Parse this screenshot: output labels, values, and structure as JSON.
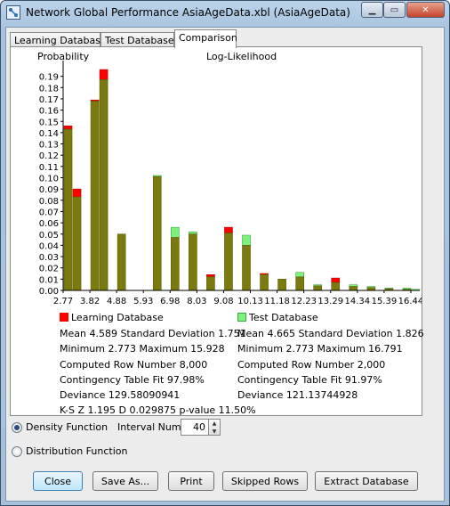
{
  "window": {
    "title": "Network Global Performance AsiaAgeData.xbl (AsiaAgeData)"
  },
  "tabs": [
    {
      "label": "Learning Database"
    },
    {
      "label": "Test Database"
    },
    {
      "label": "Comparison"
    }
  ],
  "chart_data": {
    "type": "bar",
    "title": "Log-Likelihood",
    "ylabel": "Probability",
    "ylim": [
      0,
      0.2
    ],
    "yticks": [
      "0.00",
      "0.01",
      "0.02",
      "0.03",
      "0.04",
      "0.05",
      "0.06",
      "0.07",
      "0.08",
      "0.09",
      "0.10",
      "0.11",
      "0.12",
      "0.13",
      "0.14",
      "0.15",
      "0.16",
      "0.17",
      "0.18",
      "0.19"
    ],
    "xticks": [
      "2.77",
      "3.82",
      "4.88",
      "5.93",
      "6.98",
      "8.03",
      "9.08",
      "10.13",
      "11.18",
      "12.23",
      "13.29",
      "14.34",
      "15.39",
      "16.44"
    ],
    "bins": 40,
    "series": [
      {
        "name": "Learning Database",
        "color": "#ff0000",
        "values": [
          0.146,
          0.09,
          0.0,
          0.169,
          0.196,
          0.0,
          0.05,
          0.0,
          0.0,
          0.0,
          0.101,
          0.0,
          0.047,
          0.0,
          0.05,
          0.0,
          0.014,
          0.0,
          0.056,
          0.0,
          0.04,
          0.0,
          0.015,
          0.0,
          0.01,
          0.0,
          0.012,
          0.0,
          0.004,
          0.0,
          0.011,
          0.0,
          0.0035,
          0.0,
          0.0025,
          0.0,
          0.0015,
          0.0,
          0.001,
          0.0
        ]
      },
      {
        "name": "Test Database",
        "color": "#7cf27c",
        "values": [
          0.143,
          0.083,
          0.0,
          0.168,
          0.187,
          0.0,
          0.05,
          0.0,
          0.0,
          0.0,
          0.102,
          0.0,
          0.056,
          0.0,
          0.052,
          0.0,
          0.012,
          0.0,
          0.051,
          0.0,
          0.049,
          0.0,
          0.014,
          0.0,
          0.01,
          0.0,
          0.016,
          0.0,
          0.005,
          0.0,
          0.007,
          0.0,
          0.005,
          0.0,
          0.0035,
          0.0,
          0.002,
          0.0,
          0.002,
          0.001
        ]
      }
    ]
  },
  "learning": {
    "legend": "Learning Database",
    "mean_sd": "Mean 4.589 Standard Deviation 1.751",
    "min_max": "Minimum 2.773 Maximum 15.928",
    "rows": "Computed Row Number 8,000",
    "fit": "Contingency Table Fit 97.98%",
    "deviance": "Deviance 129.58090941"
  },
  "test": {
    "legend": "Test Database",
    "mean_sd": "Mean 4.665 Standard Deviation 1.826",
    "min_max": "Minimum 2.773 Maximum 16.791",
    "rows": "Computed Row Number 2,000",
    "fit": "Contingency Table Fit 91.97%",
    "deviance": "Deviance 121.13744928"
  },
  "ks": "K-S  Z 1.195  D 0.029875  p-value 11.50%",
  "options": {
    "density": "Density Function",
    "distribution": "Distribution Function",
    "interval_label": "Interval Number",
    "interval_value": "40"
  },
  "buttons": {
    "close": "Close",
    "save_as": "Save As...",
    "print": "Print",
    "skipped": "Skipped Rows",
    "extract": "Extract Database"
  }
}
